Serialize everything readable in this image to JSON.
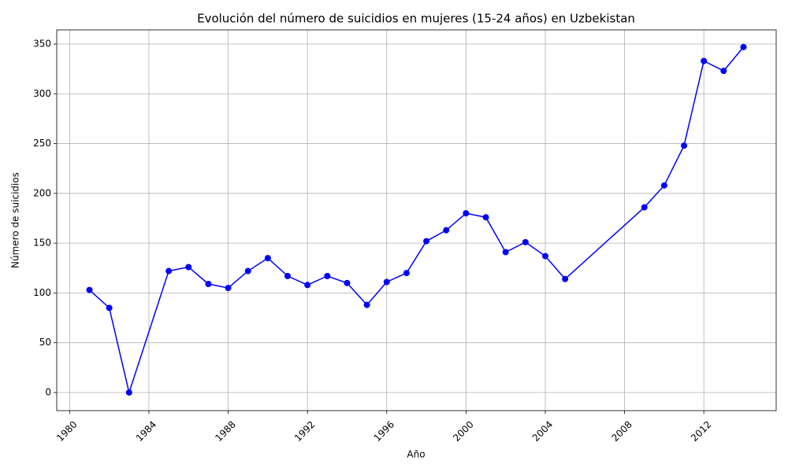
{
  "chart_data": {
    "type": "line",
    "title": "Evolución del número de suicidios en mujeres (15-24 años) en Uzbekistan",
    "x_label": "Año",
    "y_label": "Número de suicidios",
    "x": [
      1981,
      1982,
      1983,
      1985,
      1986,
      1987,
      1988,
      1989,
      1990,
      1991,
      1992,
      1993,
      1994,
      1995,
      1996,
      1997,
      1998,
      1999,
      2000,
      2001,
      2002,
      2003,
      2004,
      2005,
      2009,
      2010,
      2011,
      2012,
      2013,
      2014
    ],
    "values": [
      103,
      85,
      0,
      122,
      126,
      109,
      105,
      122,
      135,
      117,
      108,
      117,
      110,
      88,
      111,
      120,
      152,
      163,
      180,
      176,
      141,
      151,
      137,
      114,
      186,
      208,
      248,
      333,
      323,
      347
    ],
    "color": "#0000ff",
    "xlim": [
      1979.35,
      2015.65
    ],
    "xticks": [
      1980,
      1984,
      1988,
      1992,
      1996,
      2000,
      2004,
      2008,
      2012
    ],
    "ylim": [
      -18.2,
      364.2
    ],
    "yticks": [
      0,
      50,
      100,
      150,
      200,
      250,
      300,
      350
    ],
    "grid": true
  }
}
